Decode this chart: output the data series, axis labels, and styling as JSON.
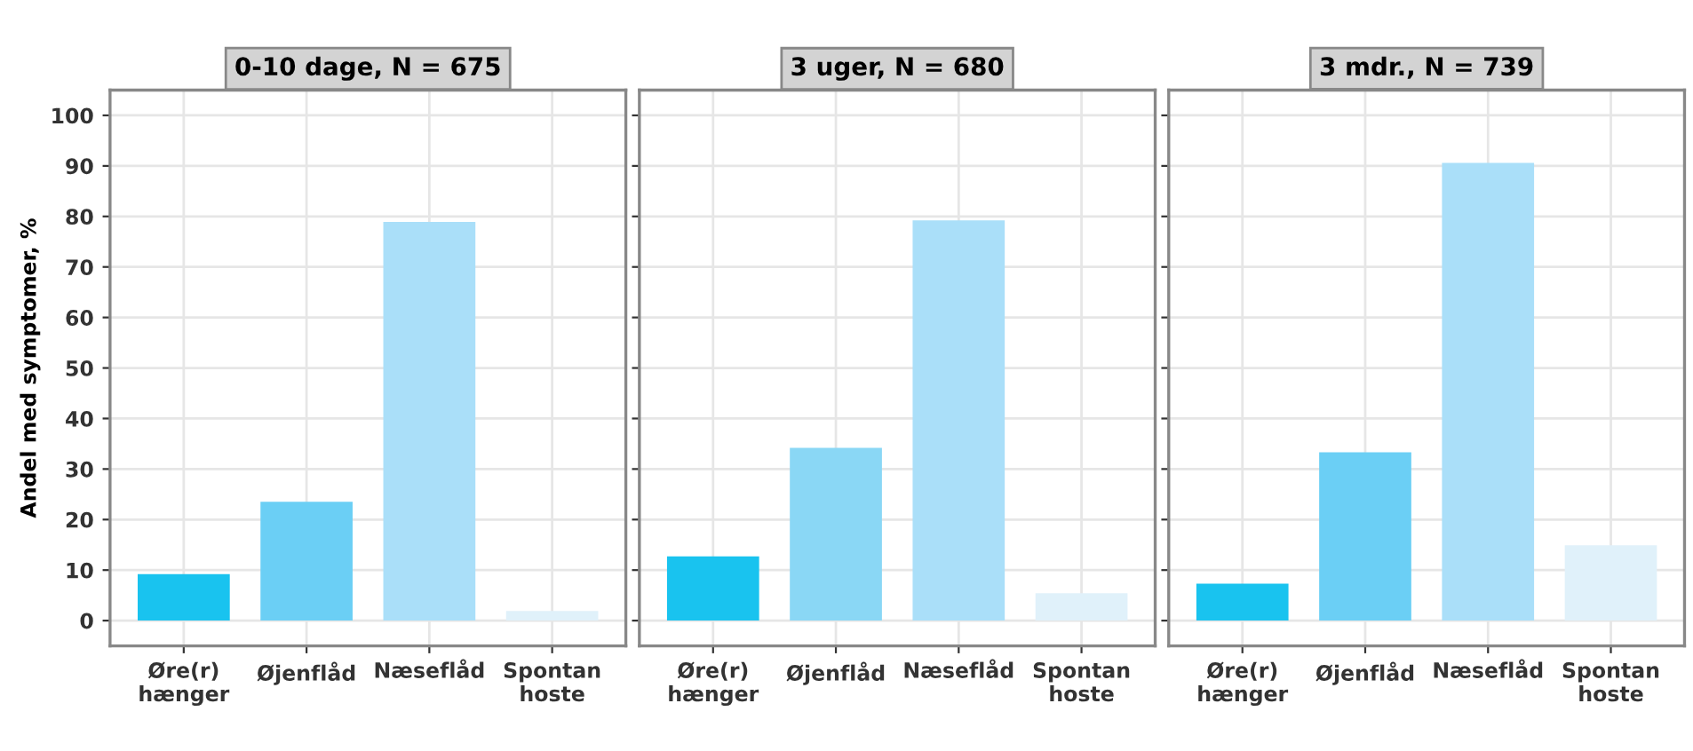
{
  "chart_data": [
    {
      "type": "bar",
      "title": "0-10 dage, N = 675",
      "ylabel": "Andel med symptomer, %",
      "categories": [
        "Øre(r)\nhænger",
        "Øjenflåd",
        "Næseflåd",
        "Spontan\nhoste"
      ],
      "values": [
        9.2,
        23.5,
        78.9,
        1.9
      ],
      "colors": [
        "#19c3ef",
        "#6bcff5",
        "#aadff9",
        "#e0f1fa"
      ],
      "ylim": [
        -5,
        105
      ],
      "yticks": [
        0,
        10,
        20,
        30,
        40,
        50,
        60,
        70,
        80,
        90,
        100
      ],
      "grid": true
    },
    {
      "type": "bar",
      "title": "3 uger, N = 680",
      "categories": [
        "Øre(r)\nhænger",
        "Øjenflåd",
        "Næseflåd",
        "Spontan\nhoste"
      ],
      "values": [
        12.7,
        34.2,
        79.2,
        5.4
      ],
      "colors": [
        "#19c3ef",
        "#8ad7f5",
        "#aadff9",
        "#e0f1fa"
      ],
      "ylim": [
        -5,
        105
      ],
      "yticks": [
        0,
        10,
        20,
        30,
        40,
        50,
        60,
        70,
        80,
        90,
        100
      ],
      "grid": true,
      "tick_labels": "x"
    },
    {
      "type": "bar",
      "title": "3 mdr., N = 739",
      "categories": [
        "Øre(r)\nhænger",
        "Øjenflåd",
        "Næseflåd",
        "Spontan\nhoste"
      ],
      "values": [
        7.3,
        33.3,
        90.6,
        14.9
      ],
      "colors": [
        "#19c3ef",
        "#6bcff5",
        "#aadff9",
        "#e0f1fa"
      ],
      "ylim": [
        -5,
        105
      ],
      "yticks": [
        0,
        10,
        20,
        30,
        40,
        50,
        60,
        70,
        80,
        90,
        100
      ],
      "grid": true,
      "tick_labels": "x"
    }
  ]
}
